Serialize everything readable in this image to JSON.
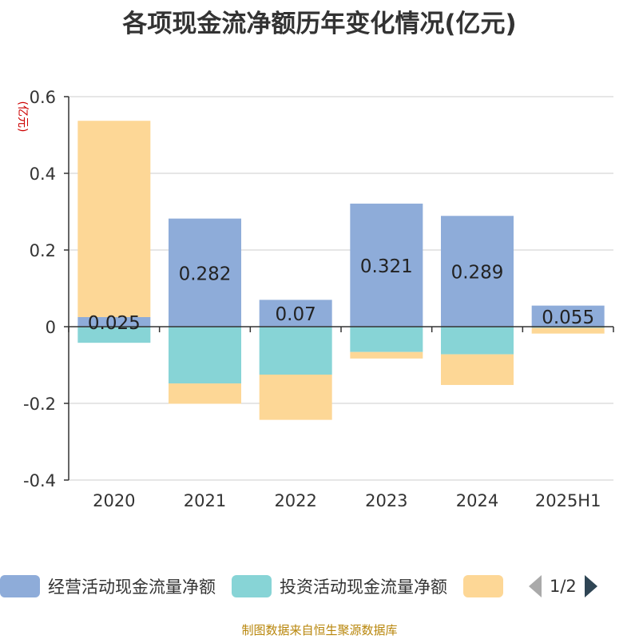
{
  "chart_data": {
    "type": "bar",
    "stacked": true,
    "title": "各项现金流净额历年变化情况(亿元)",
    "ylabel": "(亿元)",
    "ylim": [
      -0.4,
      0.6
    ],
    "yticks": [
      "0.6",
      "0.4",
      "0.2",
      "0",
      "-0.2",
      "-0.4"
    ],
    "ytick_values": [
      0.6,
      0.4,
      0.2,
      0,
      -0.2,
      -0.4
    ],
    "categories": [
      "2020",
      "2021",
      "2022",
      "2023",
      "2024",
      "2025H1"
    ],
    "grid": true,
    "legend_position": "bottom",
    "series": [
      {
        "name": "经营活动现金流量净额",
        "color": "#8eacd9",
        "values": [
          0.025,
          0.282,
          0.07,
          0.321,
          0.289,
          0.055
        ],
        "labels": [
          "0.025",
          "0.282",
          "0.07",
          "0.321",
          "0.289",
          "0.055"
        ]
      },
      {
        "name": "投资活动现金流量净额",
        "color": "#87d4d6",
        "values": [
          -0.042,
          -0.148,
          -0.125,
          -0.066,
          -0.072,
          -0.003
        ]
      },
      {
        "name": "",
        "color": "#fdd796",
        "values": [
          0.512,
          -0.053,
          -0.118,
          -0.017,
          -0.08,
          -0.015
        ]
      }
    ]
  },
  "legend": {
    "pager": "1/2"
  },
  "source": "制图数据来自恒生聚源数据库"
}
